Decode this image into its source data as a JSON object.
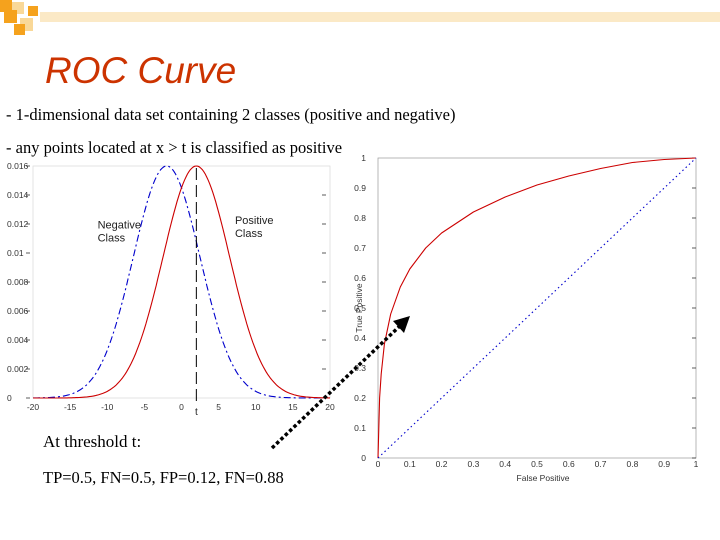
{
  "slide": {
    "title": "ROC Curve",
    "bullets": [
      "- 1-dimensional data set containing 2 classes (positive and negative)",
      "- any points located at x > t is classified as positive"
    ],
    "threshold_caption": "At threshold t:",
    "stats_caption": "TP=0.5, FN=0.5, FP=0.12, FN=0.88"
  },
  "colors": {
    "title": "#cc3300",
    "deco_orange": "#f5a21d",
    "deco_light": "#f9d898",
    "positive": "#cc0000",
    "negative": "#0000cc",
    "pointer": "#000000"
  },
  "chart_data": [
    {
      "type": "line",
      "title": "",
      "xlabel": "",
      "ylabel": "",
      "xlim": [
        -20,
        20
      ],
      "ylim": [
        0,
        0.016
      ],
      "x_ticks": [
        -20,
        -15,
        -10,
        -5,
        0,
        5,
        10,
        15,
        20
      ],
      "x_tick_labels": [
        "-20",
        "-15",
        "-10",
        "-5",
        "0",
        "5",
        "10",
        "15",
        "20"
      ],
      "y_ticks": [
        0,
        0.002,
        0.004,
        0.006,
        0.008,
        0.01,
        0.012,
        0.014,
        0.016
      ],
      "y_tick_labels": [
        "0",
        "0.002",
        "0.004",
        "0.006",
        "0.008",
        "0.01",
        "0.012",
        "0.014",
        "0.016"
      ],
      "threshold": {
        "x": 2,
        "label": "t"
      },
      "series": [
        {
          "name": "Negative Class",
          "label_lines": [
            "Negative",
            "Class"
          ],
          "label_at": [
            -11.3,
            0.0117
          ],
          "mean": -2,
          "sd": 4.5,
          "peak": 0.016,
          "style": "dashdot",
          "color": "#0000cc"
        },
        {
          "name": "Positive Class",
          "label_lines": [
            "Positive",
            "Class"
          ],
          "label_at": [
            7.2,
            0.012
          ],
          "mean": 2,
          "sd": 4.5,
          "peak": 0.016,
          "style": "solid",
          "color": "#cc0000"
        }
      ]
    },
    {
      "type": "line",
      "title": "",
      "xlabel": "False Positive",
      "ylabel": "True Positive",
      "xlim": [
        0,
        1
      ],
      "ylim": [
        0,
        1
      ],
      "x_ticks": [
        0,
        0.1,
        0.2,
        0.3,
        0.4,
        0.5,
        0.6,
        0.7,
        0.8,
        0.9,
        1
      ],
      "x_tick_labels": [
        "0",
        "0.1",
        "0.2",
        "0.3",
        "0.4",
        "0.5",
        "0.6",
        "0.7",
        "0.8",
        "0.9",
        "1"
      ],
      "y_ticks": [
        0,
        0.1,
        0.2,
        0.3,
        0.4,
        0.5,
        0.6,
        0.7,
        0.8,
        0.9,
        1
      ],
      "y_tick_labels": [
        "0",
        "0.1",
        "0.2",
        "0.3",
        "0.4",
        "0.5",
        "0.6",
        "0.7",
        "0.8",
        "0.9",
        "1"
      ],
      "series": [
        {
          "name": "ROC",
          "color": "#cc0000",
          "style": "solid",
          "x": [
            0,
            0.005,
            0.01,
            0.02,
            0.04,
            0.07,
            0.1,
            0.15,
            0.2,
            0.3,
            0.4,
            0.5,
            0.6,
            0.7,
            0.8,
            0.9,
            1
          ],
          "y": [
            0,
            0.2,
            0.28,
            0.38,
            0.48,
            0.57,
            0.63,
            0.7,
            0.75,
            0.82,
            0.87,
            0.91,
            0.94,
            0.965,
            0.985,
            0.995,
            1
          ]
        },
        {
          "name": "Random",
          "color": "#0000cc",
          "style": "dotted",
          "x": [
            0,
            1
          ],
          "y": [
            0,
            1
          ]
        }
      ]
    }
  ]
}
